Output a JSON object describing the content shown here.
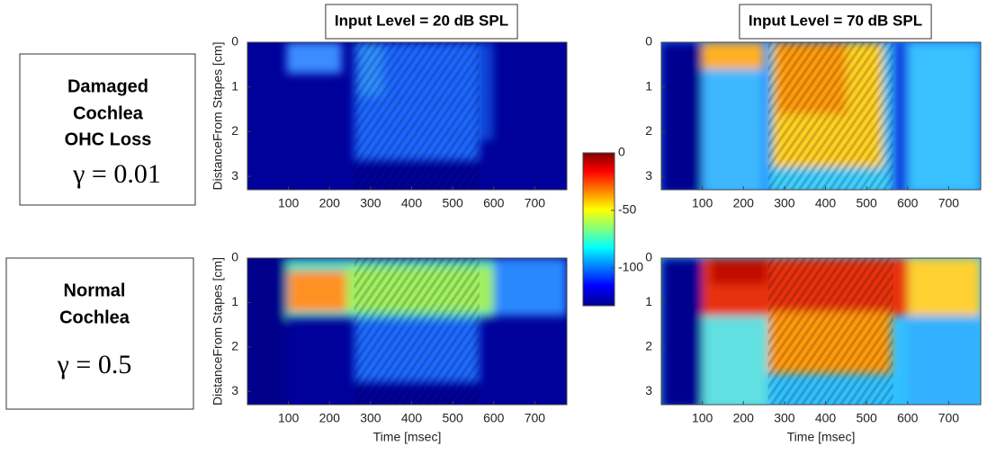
{
  "rows": [
    {
      "lines": [
        "Damaged",
        "Cochlea",
        "OHC Loss"
      ],
      "gamma": "γ = 0.01"
    },
    {
      "lines": [
        "Normal",
        "Cochlea"
      ],
      "gamma": "γ = 0.5"
    }
  ],
  "chart_data": [
    {
      "type": "heatmap",
      "title": "Input Level = 20 dB SPL",
      "ylabel": "DistanceFrom Stapes [cm]",
      "xlim": [
        0,
        778
      ],
      "xticks": [
        100,
        200,
        300,
        400,
        500,
        600,
        700
      ],
      "ylim": [
        0,
        3.3
      ],
      "yticks": [
        0,
        1,
        2,
        3
      ]
    },
    {
      "type": "heatmap",
      "title": "Input Level = 70 dB SPL",
      "xlim": [
        0,
        778
      ],
      "xticks": [
        100,
        200,
        300,
        400,
        500,
        600,
        700
      ],
      "ylim": [
        0,
        3.3
      ],
      "yticks": [
        0,
        1,
        2,
        3
      ]
    },
    {
      "type": "heatmap",
      "ylabel": "DistanceFrom Stapes [cm]",
      "xlabel": "Time [msec]",
      "xlim": [
        0,
        778
      ],
      "xticks": [
        100,
        200,
        300,
        400,
        500,
        600,
        700
      ],
      "ylim": [
        0,
        3.3
      ],
      "yticks": [
        0,
        1,
        2,
        3
      ]
    },
    {
      "type": "heatmap",
      "xlabel": "Time [msec]",
      "xlim": [
        0,
        778
      ],
      "xticks": [
        100,
        200,
        300,
        400,
        500,
        600,
        700
      ],
      "ylim": [
        0,
        3.3
      ],
      "yticks": [
        0,
        1,
        2,
        3
      ]
    }
  ],
  "colorbar": {
    "clim": [
      -133,
      0
    ],
    "ticks": [
      0,
      -50,
      -100
    ]
  }
}
